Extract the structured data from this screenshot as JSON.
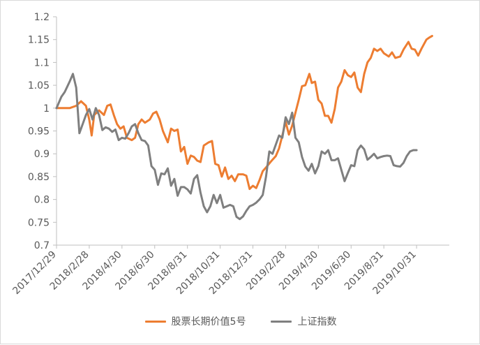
{
  "chart_data": {
    "type": "line",
    "y_range": [
      0.7,
      1.2
    ],
    "y_ticks": [
      "1.2",
      "1.15",
      "1.1",
      "1.05",
      "1",
      "0.95",
      "0.9",
      "0.85",
      "0.8",
      "0.75",
      "0.7"
    ],
    "x_ticks": [
      "2017/12/29",
      "2018/2/28",
      "2018/4/30",
      "2018/6/30",
      "2018/8/31",
      "2018/10/31",
      "2018/12/31",
      "2019/2/28",
      "2019/4/30",
      "2019/6/30",
      "2019/8/31",
      "2019/10/31"
    ],
    "x_range": [
      0,
      24
    ],
    "legend_position": "bottom",
    "grid": false,
    "series": [
      {
        "name": "股票长期价值5号",
        "color": "#ED7D31",
        "points": [
          [
            0,
            1.0
          ],
          [
            0.4,
            1.0
          ],
          [
            0.8,
            1.0
          ],
          [
            1.2,
            1.005
          ],
          [
            1.5,
            1.015
          ],
          [
            1.8,
            1.005
          ],
          [
            2.0,
            0.975
          ],
          [
            2.15,
            0.94
          ],
          [
            2.3,
            0.985
          ],
          [
            2.6,
            0.995
          ],
          [
            2.9,
            0.985
          ],
          [
            3.1,
            1.005
          ],
          [
            3.3,
            1.008
          ],
          [
            3.5,
            0.985
          ],
          [
            3.7,
            0.965
          ],
          [
            3.9,
            0.955
          ],
          [
            4.1,
            0.96
          ],
          [
            4.3,
            0.935
          ],
          [
            4.6,
            0.93
          ],
          [
            4.8,
            0.935
          ],
          [
            5.0,
            0.965
          ],
          [
            5.2,
            0.975
          ],
          [
            5.4,
            0.968
          ],
          [
            5.7,
            0.975
          ],
          [
            5.9,
            0.988
          ],
          [
            6.1,
            0.992
          ],
          [
            6.3,
            0.975
          ],
          [
            6.5,
            0.95
          ],
          [
            6.8,
            0.925
          ],
          [
            7.0,
            0.955
          ],
          [
            7.2,
            0.95
          ],
          [
            7.4,
            0.953
          ],
          [
            7.6,
            0.905
          ],
          [
            7.8,
            0.915
          ],
          [
            8.0,
            0.878
          ],
          [
            8.2,
            0.896
          ],
          [
            8.4,
            0.893
          ],
          [
            8.6,
            0.885
          ],
          [
            8.8,
            0.882
          ],
          [
            9.0,
            0.918
          ],
          [
            9.3,
            0.925
          ],
          [
            9.5,
            0.928
          ],
          [
            9.7,
            0.878
          ],
          [
            9.9,
            0.875
          ],
          [
            10.1,
            0.85
          ],
          [
            10.3,
            0.87
          ],
          [
            10.5,
            0.845
          ],
          [
            10.7,
            0.852
          ],
          [
            10.9,
            0.84
          ],
          [
            11.1,
            0.855
          ],
          [
            11.4,
            0.855
          ],
          [
            11.6,
            0.852
          ],
          [
            11.8,
            0.823
          ],
          [
            12.0,
            0.83
          ],
          [
            12.2,
            0.825
          ],
          [
            12.4,
            0.842
          ],
          [
            12.6,
            0.862
          ],
          [
            12.8,
            0.87
          ],
          [
            13.1,
            0.883
          ],
          [
            13.4,
            0.895
          ],
          [
            13.6,
            0.912
          ],
          [
            13.8,
            0.94
          ],
          [
            14.0,
            0.97
          ],
          [
            14.2,
            0.942
          ],
          [
            14.4,
            0.962
          ],
          [
            14.6,
            0.99
          ],
          [
            14.8,
            1.018
          ],
          [
            15.0,
            1.048
          ],
          [
            15.2,
            1.05
          ],
          [
            15.45,
            1.075
          ],
          [
            15.6,
            1.055
          ],
          [
            15.8,
            1.058
          ],
          [
            16.0,
            1.018
          ],
          [
            16.2,
            1.01
          ],
          [
            16.4,
            0.983
          ],
          [
            16.6,
            0.983
          ],
          [
            16.8,
            0.968
          ],
          [
            17.0,
            0.998
          ],
          [
            17.2,
            1.045
          ],
          [
            17.4,
            1.058
          ],
          [
            17.6,
            1.083
          ],
          [
            17.8,
            1.072
          ],
          [
            18.0,
            1.068
          ],
          [
            18.2,
            1.078
          ],
          [
            18.4,
            1.045
          ],
          [
            18.6,
            1.035
          ],
          [
            18.8,
            1.075
          ],
          [
            19.0,
            1.1
          ],
          [
            19.2,
            1.11
          ],
          [
            19.4,
            1.13
          ],
          [
            19.6,
            1.125
          ],
          [
            19.8,
            1.13
          ],
          [
            20.0,
            1.12
          ],
          [
            20.3,
            1.113
          ],
          [
            20.5,
            1.122
          ],
          [
            20.7,
            1.11
          ],
          [
            21.0,
            1.113
          ],
          [
            21.2,
            1.128
          ],
          [
            21.5,
            1.145
          ],
          [
            21.7,
            1.13
          ],
          [
            21.9,
            1.128
          ],
          [
            22.1,
            1.115
          ],
          [
            22.3,
            1.13
          ],
          [
            22.6,
            1.15
          ],
          [
            22.8,
            1.155
          ],
          [
            22.95,
            1.158
          ]
        ]
      },
      {
        "name": "上证指数",
        "color": "#7F7F7F",
        "points": [
          [
            0,
            1.0
          ],
          [
            0.3,
            1.025
          ],
          [
            0.5,
            1.035
          ],
          [
            0.8,
            1.058
          ],
          [
            1.0,
            1.075
          ],
          [
            1.2,
            1.045
          ],
          [
            1.4,
            0.945
          ],
          [
            1.6,
            0.965
          ],
          [
            1.8,
            0.985
          ],
          [
            2.0,
            0.998
          ],
          [
            2.2,
            0.975
          ],
          [
            2.4,
            1.0
          ],
          [
            2.6,
            0.985
          ],
          [
            2.8,
            0.952
          ],
          [
            3.0,
            0.958
          ],
          [
            3.2,
            0.955
          ],
          [
            3.4,
            0.948
          ],
          [
            3.6,
            0.953
          ],
          [
            3.8,
            0.93
          ],
          [
            4.0,
            0.935
          ],
          [
            4.2,
            0.933
          ],
          [
            4.4,
            0.945
          ],
          [
            4.6,
            0.96
          ],
          [
            4.8,
            0.965
          ],
          [
            5.0,
            0.945
          ],
          [
            5.2,
            0.93
          ],
          [
            5.4,
            0.928
          ],
          [
            5.6,
            0.918
          ],
          [
            5.8,
            0.873
          ],
          [
            6.0,
            0.865
          ],
          [
            6.2,
            0.832
          ],
          [
            6.4,
            0.857
          ],
          [
            6.6,
            0.855
          ],
          [
            6.8,
            0.868
          ],
          [
            7.0,
            0.83
          ],
          [
            7.2,
            0.845
          ],
          [
            7.4,
            0.808
          ],
          [
            7.6,
            0.827
          ],
          [
            7.8,
            0.827
          ],
          [
            8.0,
            0.822
          ],
          [
            8.2,
            0.813
          ],
          [
            8.4,
            0.845
          ],
          [
            8.6,
            0.853
          ],
          [
            8.8,
            0.815
          ],
          [
            9.0,
            0.785
          ],
          [
            9.2,
            0.772
          ],
          [
            9.4,
            0.785
          ],
          [
            9.6,
            0.81
          ],
          [
            9.8,
            0.792
          ],
          [
            10.0,
            0.81
          ],
          [
            10.2,
            0.782
          ],
          [
            10.4,
            0.785
          ],
          [
            10.6,
            0.788
          ],
          [
            10.8,
            0.785
          ],
          [
            11.0,
            0.762
          ],
          [
            11.2,
            0.757
          ],
          [
            11.4,
            0.763
          ],
          [
            11.6,
            0.775
          ],
          [
            11.8,
            0.785
          ],
          [
            12.0,
            0.788
          ],
          [
            12.2,
            0.793
          ],
          [
            12.4,
            0.8
          ],
          [
            12.6,
            0.81
          ],
          [
            12.8,
            0.85
          ],
          [
            13.0,
            0.905
          ],
          [
            13.2,
            0.9
          ],
          [
            13.4,
            0.92
          ],
          [
            13.6,
            0.94
          ],
          [
            13.8,
            0.935
          ],
          [
            14.0,
            0.98
          ],
          [
            14.2,
            0.965
          ],
          [
            14.4,
            0.99
          ],
          [
            14.6,
            0.935
          ],
          [
            14.8,
            0.925
          ],
          [
            15.0,
            0.893
          ],
          [
            15.2,
            0.872
          ],
          [
            15.4,
            0.863
          ],
          [
            15.6,
            0.878
          ],
          [
            15.8,
            0.857
          ],
          [
            16.0,
            0.873
          ],
          [
            16.2,
            0.905
          ],
          [
            16.4,
            0.9
          ],
          [
            16.6,
            0.908
          ],
          [
            16.8,
            0.886
          ],
          [
            17.0,
            0.886
          ],
          [
            17.2,
            0.89
          ],
          [
            17.4,
            0.865
          ],
          [
            17.6,
            0.84
          ],
          [
            17.8,
            0.858
          ],
          [
            18.0,
            0.875
          ],
          [
            18.2,
            0.873
          ],
          [
            18.4,
            0.908
          ],
          [
            18.6,
            0.918
          ],
          [
            18.8,
            0.91
          ],
          [
            19.0,
            0.887
          ],
          [
            19.2,
            0.893
          ],
          [
            19.4,
            0.9
          ],
          [
            19.6,
            0.89
          ],
          [
            19.8,
            0.893
          ],
          [
            20.0,
            0.895
          ],
          [
            20.2,
            0.896
          ],
          [
            20.4,
            0.895
          ],
          [
            20.6,
            0.875
          ],
          [
            20.8,
            0.873
          ],
          [
            21.0,
            0.872
          ],
          [
            21.2,
            0.88
          ],
          [
            21.4,
            0.895
          ],
          [
            21.6,
            0.905
          ],
          [
            21.8,
            0.908
          ],
          [
            22.0,
            0.908
          ]
        ]
      }
    ]
  }
}
